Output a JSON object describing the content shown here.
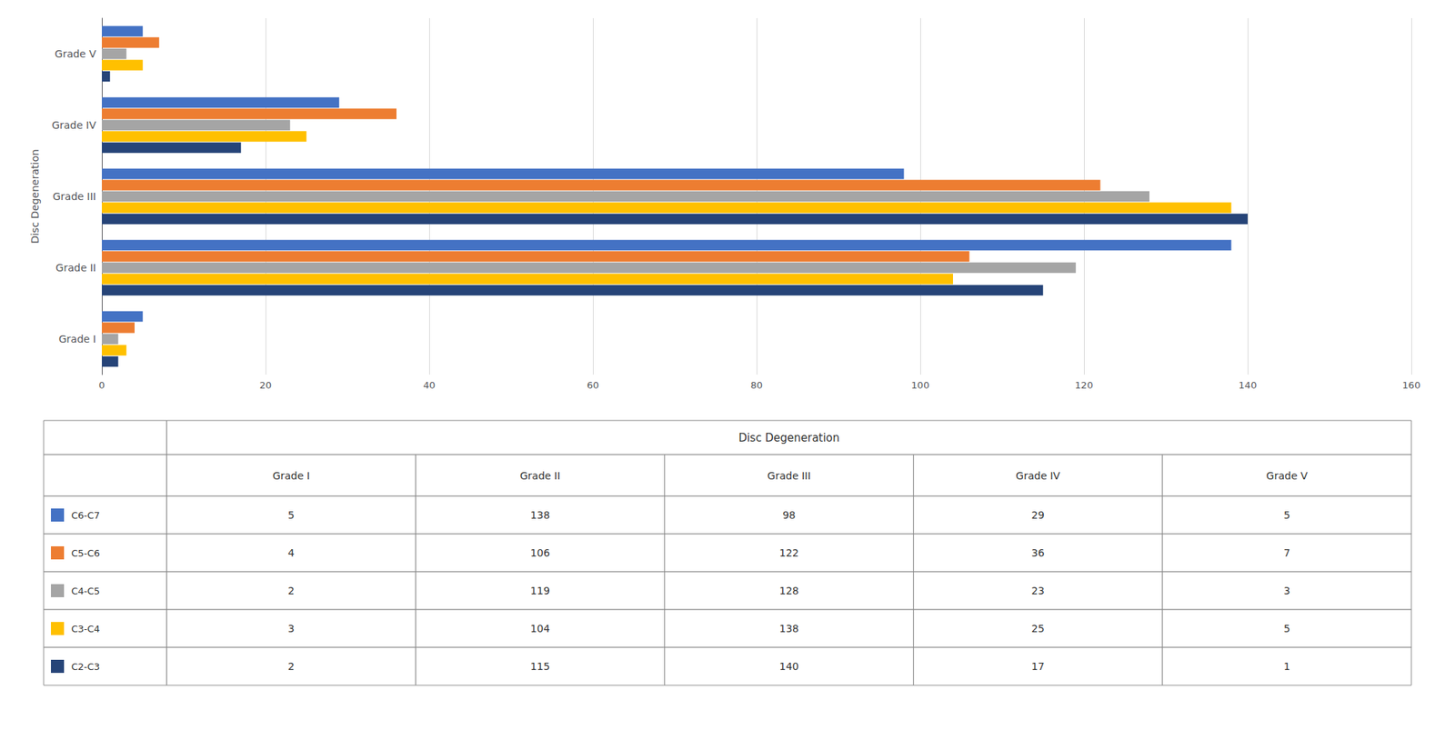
{
  "chart_data": {
    "type": "bar",
    "orientation": "horizontal",
    "categories": [
      "Grade I",
      "Grade II",
      "Grade III",
      "Grade IV",
      "Grade V"
    ],
    "series": [
      {
        "name": "C6-C7",
        "color": "#4472C4",
        "values": [
          5,
          138,
          98,
          29,
          5
        ]
      },
      {
        "name": "C5-C6",
        "color": "#ED7D31",
        "values": [
          4,
          106,
          122,
          36,
          7
        ]
      },
      {
        "name": "C4-C5",
        "color": "#A5A5A5",
        "values": [
          2,
          119,
          128,
          23,
          3
        ]
      },
      {
        "name": "C3-C4",
        "color": "#FFC000",
        "values": [
          3,
          104,
          138,
          25,
          5
        ]
      },
      {
        "name": "C2-C3",
        "color": "#264478",
        "values": [
          2,
          115,
          140,
          17,
          1
        ]
      }
    ],
    "ylabel": "Disc Degeneration",
    "xlim": [
      0,
      160
    ],
    "xticks": [
      0,
      20,
      40,
      60,
      80,
      100,
      120,
      140,
      160
    ],
    "grid": true,
    "table": {
      "title": "Disc Degeneration",
      "col_labels": [
        "Grade I",
        "Grade II",
        "Grade III",
        "Grade IV",
        "Grade V"
      ],
      "row_labels": [
        "C6-C7",
        "C5-C6",
        "C4-C5",
        "C3-C4",
        "C2-C3"
      ],
      "row_colors": [
        "#4472C4",
        "#ED7D31",
        "#A5A5A5",
        "#FFC000",
        "#264478"
      ],
      "data": [
        [
          5,
          138,
          98,
          29,
          5
        ],
        [
          4,
          106,
          122,
          36,
          7
        ],
        [
          2,
          119,
          128,
          23,
          3
        ],
        [
          3,
          104,
          138,
          25,
          5
        ],
        [
          2,
          115,
          140,
          17,
          1
        ]
      ]
    }
  }
}
